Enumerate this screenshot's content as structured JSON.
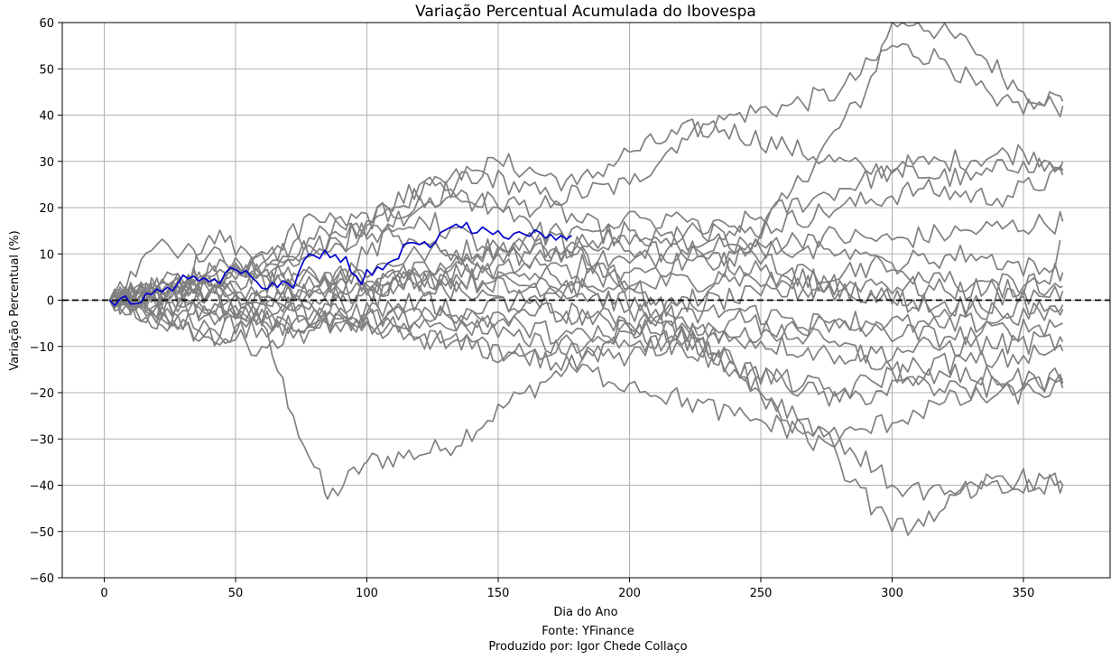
{
  "chart_data": {
    "type": "line",
    "title": "Variação Percentual Acumulada do Ibovespa",
    "xlabel": "Dia do Ano",
    "ylabel": "Variação Percentual (%)",
    "xlim": [
      -16,
      383
    ],
    "ylim": [
      -60,
      60
    ],
    "xticks": [
      0,
      50,
      100,
      150,
      200,
      250,
      300,
      350
    ],
    "yticks": [
      -60,
      -50,
      -40,
      -30,
      -20,
      -10,
      0,
      10,
      20,
      30,
      40,
      50,
      60
    ],
    "ytick_labels": [
      "−60",
      "−50",
      "−40",
      "−30",
      "−20",
      "−10",
      "0",
      "10",
      "20",
      "30",
      "40",
      "50",
      "60"
    ],
    "grid": true,
    "reference_line": {
      "y": 0,
      "style": "dashed",
      "color": "#000000"
    },
    "colors": {
      "history": "#808080",
      "current": "#0000cc"
    },
    "series_history": [
      {
        "x": [
          2,
          30,
          60,
          72,
          85,
          100,
          130,
          160,
          200,
          230,
          260,
          290,
          300,
          310,
          330,
          350,
          365
        ],
        "y": [
          0,
          3,
          -5,
          -25,
          -43,
          -35,
          -32,
          -20,
          -7,
          2,
          22,
          45,
          60,
          60,
          55,
          45,
          43
        ]
      },
      {
        "x": [
          2,
          40,
          80,
          110,
          140,
          170,
          200,
          220,
          240,
          260,
          280,
          300,
          320,
          340,
          365
        ],
        "y": [
          0,
          5,
          10,
          20,
          28,
          22,
          25,
          35,
          40,
          42,
          45,
          55,
          52,
          42,
          42
        ]
      },
      {
        "x": [
          2,
          50,
          100,
          150,
          180,
          200,
          230,
          260,
          290,
          320,
          350,
          365
        ],
        "y": [
          0,
          8,
          14,
          30,
          25,
          32,
          38,
          33,
          28,
          30,
          32,
          30
        ]
      },
      {
        "x": [
          2,
          40,
          90,
          130,
          170,
          200,
          240,
          270,
          300,
          330,
          350,
          365
        ],
        "y": [
          0,
          4,
          16,
          22,
          20,
          12,
          16,
          22,
          28,
          26,
          30,
          28
        ]
      },
      {
        "x": [
          2,
          40,
          80,
          120,
          160,
          200,
          240,
          280,
          310,
          340,
          365
        ],
        "y": [
          0,
          -3,
          3,
          10,
          12,
          8,
          14,
          20,
          24,
          22,
          27
        ]
      },
      {
        "x": [
          2,
          40,
          80,
          120,
          160,
          200,
          240,
          270,
          300,
          330,
          365
        ],
        "y": [
          0,
          2,
          0,
          5,
          2,
          6,
          10,
          14,
          13,
          15,
          17
        ]
      },
      {
        "x": [
          2,
          50,
          100,
          140,
          180,
          220,
          260,
          300,
          330,
          360,
          364
        ],
        "y": [
          0,
          6,
          4,
          8,
          12,
          10,
          5,
          8,
          10,
          6,
          13
        ]
      },
      {
        "x": [
          2,
          50,
          90,
          130,
          170,
          210,
          250,
          290,
          320,
          350,
          365
        ],
        "y": [
          0,
          -4,
          2,
          5,
          3,
          -2,
          1,
          4,
          2,
          3,
          6
        ]
      },
      {
        "x": [
          2,
          40,
          80,
          120,
          160,
          200,
          240,
          280,
          320,
          365
        ],
        "y": [
          0,
          2,
          -2,
          -4,
          0,
          3,
          5,
          2,
          -2,
          2
        ]
      },
      {
        "x": [
          2,
          40,
          80,
          120,
          160,
          200,
          240,
          280,
          320,
          365
        ],
        "y": [
          0,
          -6,
          -2,
          3,
          -1,
          -5,
          -8,
          -4,
          -6,
          -2
        ]
      },
      {
        "x": [
          2,
          40,
          80,
          120,
          160,
          200,
          240,
          280,
          320,
          365
        ],
        "y": [
          0,
          3,
          -4,
          -6,
          -2,
          -6,
          -2,
          -6,
          -8,
          -5
        ]
      },
      {
        "x": [
          2,
          40,
          80,
          120,
          160,
          200,
          240,
          280,
          320,
          365
        ],
        "y": [
          0,
          -8,
          -5,
          0,
          -6,
          -10,
          -8,
          -12,
          -10,
          -9
        ]
      },
      {
        "x": [
          2,
          30,
          60,
          90,
          120,
          160,
          200,
          240,
          280,
          310,
          340,
          365
        ],
        "y": [
          0,
          -6,
          -10,
          -4,
          -8,
          -12,
          -6,
          -15,
          -20,
          -14,
          -13,
          -11
        ]
      },
      {
        "x": [
          2,
          40,
          80,
          120,
          160,
          200,
          240,
          280,
          320,
          365
        ],
        "y": [
          0,
          6,
          2,
          18,
          8,
          -2,
          -14,
          -22,
          -16,
          -18
        ]
      },
      {
        "x": [
          2,
          40,
          80,
          120,
          160,
          200,
          240,
          280,
          320,
          365
        ],
        "y": [
          0,
          -3,
          -6,
          -8,
          -12,
          -18,
          -25,
          -30,
          -22,
          -19
        ]
      },
      {
        "x": [
          2,
          50,
          90,
          120,
          150,
          180,
          210,
          240,
          260,
          280,
          300,
          320,
          340,
          365
        ],
        "y": [
          0,
          4,
          12,
          25,
          20,
          10,
          0,
          -14,
          -26,
          -35,
          -50,
          -45,
          -38,
          -40
        ]
      },
      {
        "x": [
          2,
          25,
          40,
          60,
          80,
          120,
          150,
          190,
          220,
          250,
          280,
          300,
          320,
          365
        ],
        "y": [
          0,
          -6,
          14,
          8,
          18,
          12,
          5,
          8,
          -5,
          -20,
          -30,
          -40,
          -42,
          -40
        ]
      },
      {
        "x": [
          2,
          20,
          40,
          60,
          100,
          140,
          180,
          220,
          260,
          300,
          340,
          365
        ],
        "y": [
          0,
          12,
          10,
          6,
          2,
          8,
          16,
          18,
          6,
          0,
          -2,
          -1
        ]
      },
      {
        "x": [
          2,
          40,
          80,
          120,
          160,
          200,
          240,
          280,
          320,
          365
        ],
        "y": [
          0,
          1,
          5,
          4,
          8,
          15,
          12,
          10,
          4,
          3
        ]
      },
      {
        "x": [
          2,
          40,
          80,
          120,
          160,
          200,
          240,
          280,
          320,
          365
        ],
        "y": [
          0,
          -2,
          -6,
          -2,
          -9,
          -12,
          -4,
          -10,
          -20,
          -17
        ]
      }
    ],
    "series_current": {
      "x": [
        2,
        4,
        6,
        8,
        10,
        12,
        14,
        16,
        18,
        20,
        22,
        24,
        26,
        28,
        30,
        32,
        34,
        36,
        38,
        40,
        42,
        44,
        46,
        48,
        50,
        52,
        54,
        56,
        58,
        60,
        62,
        64,
        66,
        68,
        70,
        72,
        74,
        76,
        78,
        80,
        82,
        84,
        86,
        88,
        90,
        92,
        94,
        96,
        98,
        100,
        102,
        104,
        106,
        108,
        110,
        112,
        114,
        116,
        118,
        120,
        122,
        124,
        126,
        128,
        130,
        132,
        134,
        136,
        138,
        140,
        142,
        144,
        146,
        148,
        150,
        152,
        154,
        156,
        158,
        160,
        162,
        164,
        166,
        168,
        170,
        172,
        174,
        176,
        178
      ],
      "y": [
        0,
        -1.2,
        0.3,
        0.9,
        -0.8,
        -0.8,
        -0.5,
        1.5,
        1.2,
        2.4,
        1.8,
        2.8,
        2.0,
        3.6,
        5.4,
        4.6,
        5.2,
        4.2,
        4.8,
        4.0,
        4.5,
        3.6,
        5.8,
        7.0,
        6.6,
        5.8,
        6.4,
        5.0,
        4.0,
        2.6,
        2.4,
        3.8,
        2.8,
        4.2,
        3.6,
        2.6,
        6.0,
        8.6,
        10.0,
        9.6,
        9.0,
        10.8,
        9.2,
        9.8,
        8.2,
        9.4,
        6.0,
        5.2,
        3.4,
        6.6,
        5.4,
        7.2,
        6.6,
        8.0,
        8.6,
        9.0,
        12.0,
        12.4,
        12.4,
        12.0,
        12.6,
        11.4,
        12.4,
        14.6,
        15.2,
        15.8,
        16.4,
        15.6,
        16.8,
        14.4,
        14.6,
        15.8,
        15.0,
        14.2,
        15.0,
        13.6,
        13.2,
        14.4,
        14.8,
        14.2,
        13.8,
        15.2,
        14.6,
        13.4,
        14.2,
        13.0,
        14.0,
        13.2,
        14.0
      ]
    }
  },
  "footer": {
    "source": "Fonte: YFinance",
    "author": "Produzido por: Igor Chede Collaço"
  }
}
